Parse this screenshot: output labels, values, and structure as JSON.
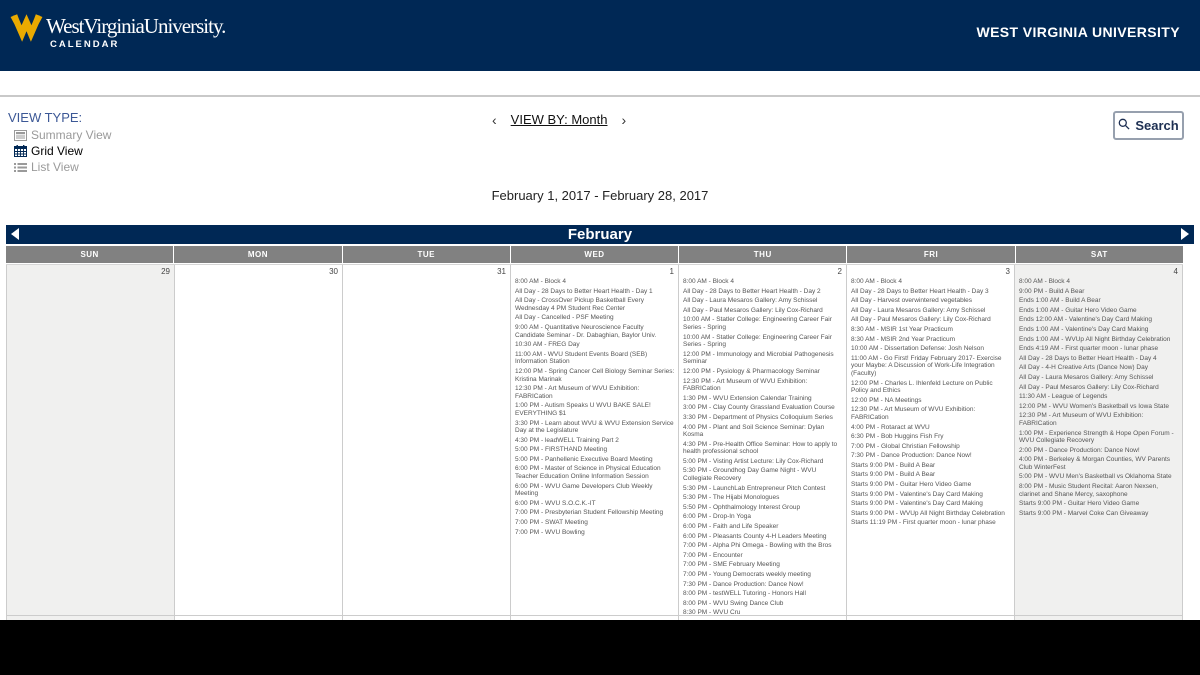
{
  "colors": {
    "brand_navy": "#002855",
    "brand_gold": "#EAAA00",
    "day_header_gray": "#818181",
    "weekend_bg": "#f0f0ef"
  },
  "header": {
    "institution": "WestVirginiaUniversity.",
    "site": "CALENDAR",
    "right_title": "WEST VIRGINIA UNIVERSITY"
  },
  "toolbar": {
    "view_type": {
      "label": "VIEW TYPE:",
      "options": [
        {
          "label": "Summary View",
          "active": false
        },
        {
          "label": "Grid View",
          "active": true
        },
        {
          "label": "List View",
          "active": false
        }
      ]
    },
    "view_by": {
      "prev": "‹",
      "label": "VIEW BY: Month",
      "next": "›"
    },
    "search_label": "Search"
  },
  "date_range": "February 1, 2017 - February 28, 2017",
  "calendar": {
    "month_title": "February",
    "day_headers": [
      "SUN",
      "MON",
      "TUE",
      "WED",
      "THU",
      "FRI",
      "SAT"
    ],
    "weeks": [
      {
        "days": [
          {
            "date": "29",
            "weekend": true,
            "events": []
          },
          {
            "date": "30",
            "weekend": false,
            "events": []
          },
          {
            "date": "31",
            "weekend": false,
            "events": []
          },
          {
            "date": "1",
            "weekend": false,
            "events": [
              "8:00 AM - Block 4",
              "All Day - 28 Days to Better Heart Health - Day 1",
              "All Day - CrossOver Pickup Basketball Every Wednesday 4 PM Student Rec Center",
              "All Day - Cancelled - PSF Meeting",
              "9:00 AM - Quantitative Neuroscience Faculty Candidate Seminar - Dr. Dabaghian, Baylor Univ.",
              "10:30 AM - FREG Day",
              "11:00 AM - WVU Student Events Board (SEB) Information Station",
              "12:00 PM - Spring Cancer Cell Biology Seminar Series: Kristina Marinak",
              "12:30 PM - Art Museum of WVU Exhibition: FABRICation",
              "1:00 PM - Autism Speaks U WVU BAKE SALE! EVERYTHING $1",
              "3:30 PM - Learn about WVU & WVU Extension Service Day at the Legislature",
              "4:30 PM - leadWELL Training Part 2",
              "5:00 PM - FIRSTHAND Meeting",
              "5:00 PM - Panhellenic Executive Board Meeting",
              "6:00 PM - Master of Science in Physical Education Teacher Education Online Information Session",
              "6:00 PM - WVU Game Developers Club Weekly Meeting",
              "6:00 PM - WVU S.O.C.K.-IT",
              "7:00 PM - Presbyterian Student Fellowship Meeting",
              "7:00 PM - SWAT Meeting",
              "7:00 PM - WVU Bowling"
            ]
          },
          {
            "date": "2",
            "weekend": false,
            "events": [
              "8:00 AM - Block 4",
              "All Day - 28 Days to Better Heart Health - Day 2",
              "All Day - Laura Mesaros Gallery: Amy Schissel",
              "All Day - Paul Mesaros Gallery: Lily Cox-Richard",
              "10:00 AM - Statler College: Engineering Career Fair Series - Spring",
              "10:00 AM - Statler College: Engineering Career Fair Series - Spring",
              "12:00 PM - Immunology and Microbial Pathogenesis Seminar",
              "12:00 PM - Pysiology & Pharmacology Seminar",
              "12:30 PM - Art Museum of WVU Exhibition: FABRICation",
              "1:30 PM - WVU Extension Calendar Training",
              "3:00 PM - Clay County Grassland Evaluation Course",
              "3:30 PM - Department of Physics Colloquium Series",
              "4:00 PM - Plant and Soil Science Seminar: Dylan Kosma",
              "4:30 PM - Pre-Health Office Seminar: How to apply to health professional school",
              "5:00 PM - Visting Artist Lecture: Lily Cox-Richard",
              "5:30 PM - Groundhog Day Game Night - WVU Collegiate Recovery",
              "5:30 PM - LaunchLab Entrepreneur Pitch Contest",
              "5:30 PM - The Hijabi Monologues",
              "5:50 PM - Ophthalmology Interest Group",
              "6:00 PM - Drop-In Yoga",
              "6:00 PM - Faith and Life Speaker",
              "6:00 PM - Pleasants County 4-H Leaders Meeting",
              "7:00 PM - Alpha Phi Omega - Bowling with the Bros",
              "7:00 PM - Encounter",
              "7:00 PM - SME February Meeting",
              "7:00 PM - Young Democrats weekly meeting",
              "7:30 PM - Dance Production: Dance Now!",
              "8:00 PM - testWELL Tutoring - Honors Hall",
              "8:00 PM - WVU Swing Dance Club",
              "8:30 PM - WVU Cru"
            ]
          },
          {
            "date": "3",
            "weekend": false,
            "events": [
              "8:00 AM - Block 4",
              "All Day - 28 Days to Better Heart Health - Day 3",
              "All Day - Harvest overwintered vegetables",
              "All Day - Laura Mesaros Gallery: Amy Schissel",
              "All Day - Paul Mesaros Gallery: Lily Cox-Richard",
              "8:30 AM - MSIR 1st Year Practicum",
              "8:30 AM - MSIR 2nd Year Practicum",
              "10:00 AM - Dissertation Defense: Josh Nelson",
              "11:00 AM - Go First! Friday February 2017- Exercise your Maybe: A Discussion of Work-Life Integration (Faculty)",
              "12:00 PM - Charles L. Ihlenfeld Lecture on Public Policy and Ethics",
              "12:00 PM - NA Meetings",
              "12:30 PM - Art Museum of WVU Exhibition: FABRICation",
              "4:00 PM - Rotaract at WVU",
              "6:30 PM - Bob Huggins Fish Fry",
              "7:00 PM - Global Christian Fellowship",
              "7:30 PM - Dance Production: Dance Now!",
              "Starts 9:00 PM - Build A Bear",
              "Starts 9:00 PM - Build A Bear",
              "Starts 9:00 PM - Guitar Hero Video Game",
              "Starts 9:00 PM - Valentine's Day Card Making",
              "Starts 9:00 PM - Valentine's Day Card Making",
              "Starts 9:00 PM - WVUp All Night Birthday Celebration",
              "Starts 11:19 PM - First quarter moon - lunar phase"
            ]
          },
          {
            "date": "4",
            "weekend": true,
            "events": [
              "8:00 AM - Block 4",
              "9:00 PM - Build A Bear",
              "Ends 1:00 AM - Build A Bear",
              "Ends 1:00 AM - Guitar Hero Video Game",
              "Ends 12:00 AM - Valentine's Day Card Making",
              "Ends 1:00 AM - Valentine's Day Card Making",
              "Ends 1:00 AM - WVUp All Night Birthday Celebration",
              "Ends 4:19 AM - First quarter moon - lunar phase",
              "All Day - 28 Days to Better Heart Health - Day 4",
              "All Day - 4-H Creative Arts (Dance Now) Day",
              "All Day - Laura Mesaros Gallery: Amy Schissel",
              "All Day - Paul Mesaros Gallery: Lily Cox-Richard",
              "11:30 AM - League of Legends",
              "12:00 PM - WVU Women's Basketball vs Iowa State",
              "12:30 PM - Art Museum of WVU Exhibition: FABRICation",
              "1:00 PM - Experience Strength & Hope Open Forum - WVU Collegiate Recovery",
              "2:00 PM - Dance Production: Dance Now!",
              "4:00 PM - Berkeley & Morgan Counties, WV Parents Club WinterFest",
              "5:00 PM - WVU Men's Basketball vs Oklahoma State",
              "8:00 PM - Music Student Recital: Aaron Nexsen, clarinet and Shane Mercy, saxophone",
              "Starts 9:00 PM - Guitar Hero Video Game",
              "Starts 9:00 PM - Marvel Coke Can Giveaway"
            ]
          }
        ]
      },
      {
        "days": [
          {
            "date": "",
            "weekend": true,
            "events": []
          },
          {
            "date": "",
            "weekend": false,
            "events": []
          },
          {
            "date": "",
            "weekend": false,
            "events": []
          },
          {
            "date": "",
            "weekend": false,
            "events": []
          },
          {
            "date": "",
            "weekend": false,
            "events": []
          },
          {
            "date": "",
            "weekend": false,
            "events": []
          },
          {
            "date": "",
            "weekend": true,
            "events": []
          }
        ]
      }
    ]
  }
}
